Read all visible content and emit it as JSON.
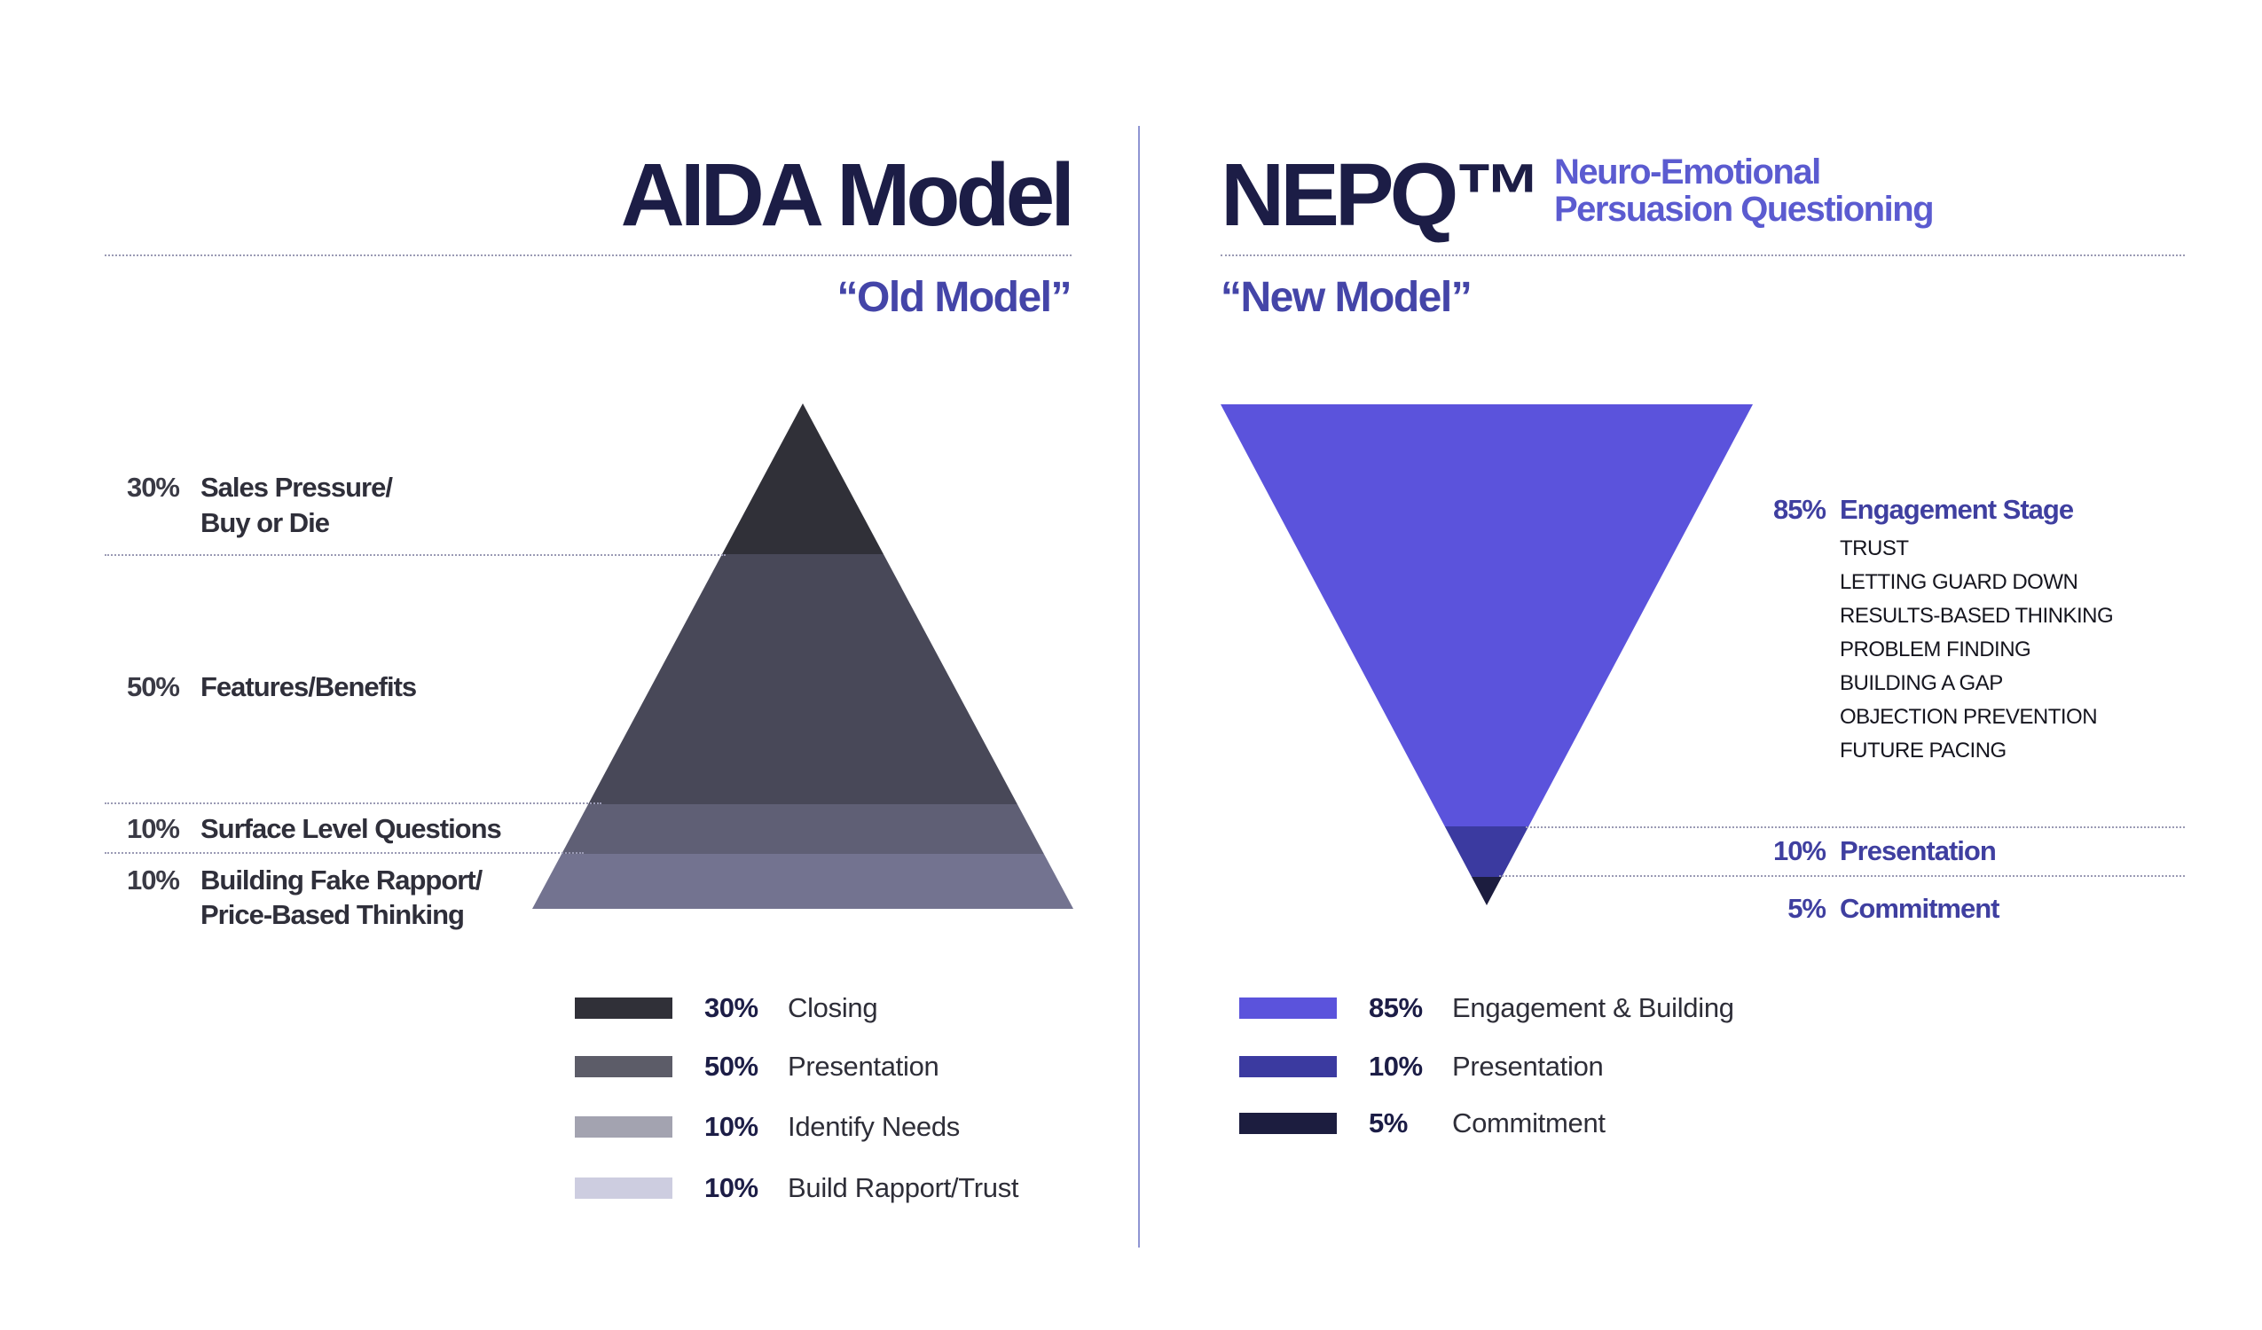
{
  "aida": {
    "title": "AIDA Model",
    "subtitle": "“Old Model”",
    "pyramid_levels": [
      {
        "percent": "30%",
        "label_lines": [
          "Sales Pressure/",
          "Buy or Die"
        ],
        "color": "#303038",
        "share": 0.3
      },
      {
        "percent": "50%",
        "label_lines": [
          "Features/Benefits"
        ],
        "color": "#484858",
        "share": 0.5
      },
      {
        "percent": "10%",
        "label_lines": [
          "Surface Level Questions"
        ],
        "color": "#5f5f75",
        "share": 0.1
      },
      {
        "percent": "10%",
        "label_lines": [
          "Building Fake Rapport/",
          "Price-Based Thinking"
        ],
        "color": "#737390",
        "share": 0.1
      }
    ],
    "legend": [
      {
        "percent": "30%",
        "label": "Closing",
        "color": "#303038"
      },
      {
        "percent": "50%",
        "label": "Presentation",
        "color": "#5c5c68"
      },
      {
        "percent": "10%",
        "label": "Identify Needs",
        "color": "#a3a3b0"
      },
      {
        "percent": "10%",
        "label": "Build Rapport/Trust",
        "color": "#cdcde0"
      }
    ]
  },
  "nepq": {
    "title": "NEPQ™",
    "tagline_lines": [
      "Neuro-Emotional",
      "Persuasion Questioning"
    ],
    "subtitle": "“New Model”",
    "funnel_levels": [
      {
        "percent": "85%",
        "label": "Engagement Stage",
        "color": "#5b53dc",
        "share": 0.85
      },
      {
        "percent": "10%",
        "label": "Presentation",
        "color": "#3b3aa0",
        "share": 0.1
      },
      {
        "percent": "5%",
        "label": "Commitment",
        "color": "#1c1d3f",
        "share": 0.05
      }
    ],
    "engagement_items": [
      "TRUST",
      "LETTING GUARD DOWN",
      "RESULTS-BASED THINKING",
      "PROBLEM FINDING",
      "BUILDING A GAP",
      "OBJECTION PREVENTION",
      "FUTURE PACING"
    ],
    "legend": [
      {
        "percent": "85%",
        "label": "Engagement & Building",
        "color": "#5b53dc"
      },
      {
        "percent": "10%",
        "label": "Presentation",
        "color": "#3b3aa0"
      },
      {
        "percent": "5%",
        "label": "Commitment",
        "color": "#1c1d3f"
      }
    ]
  }
}
